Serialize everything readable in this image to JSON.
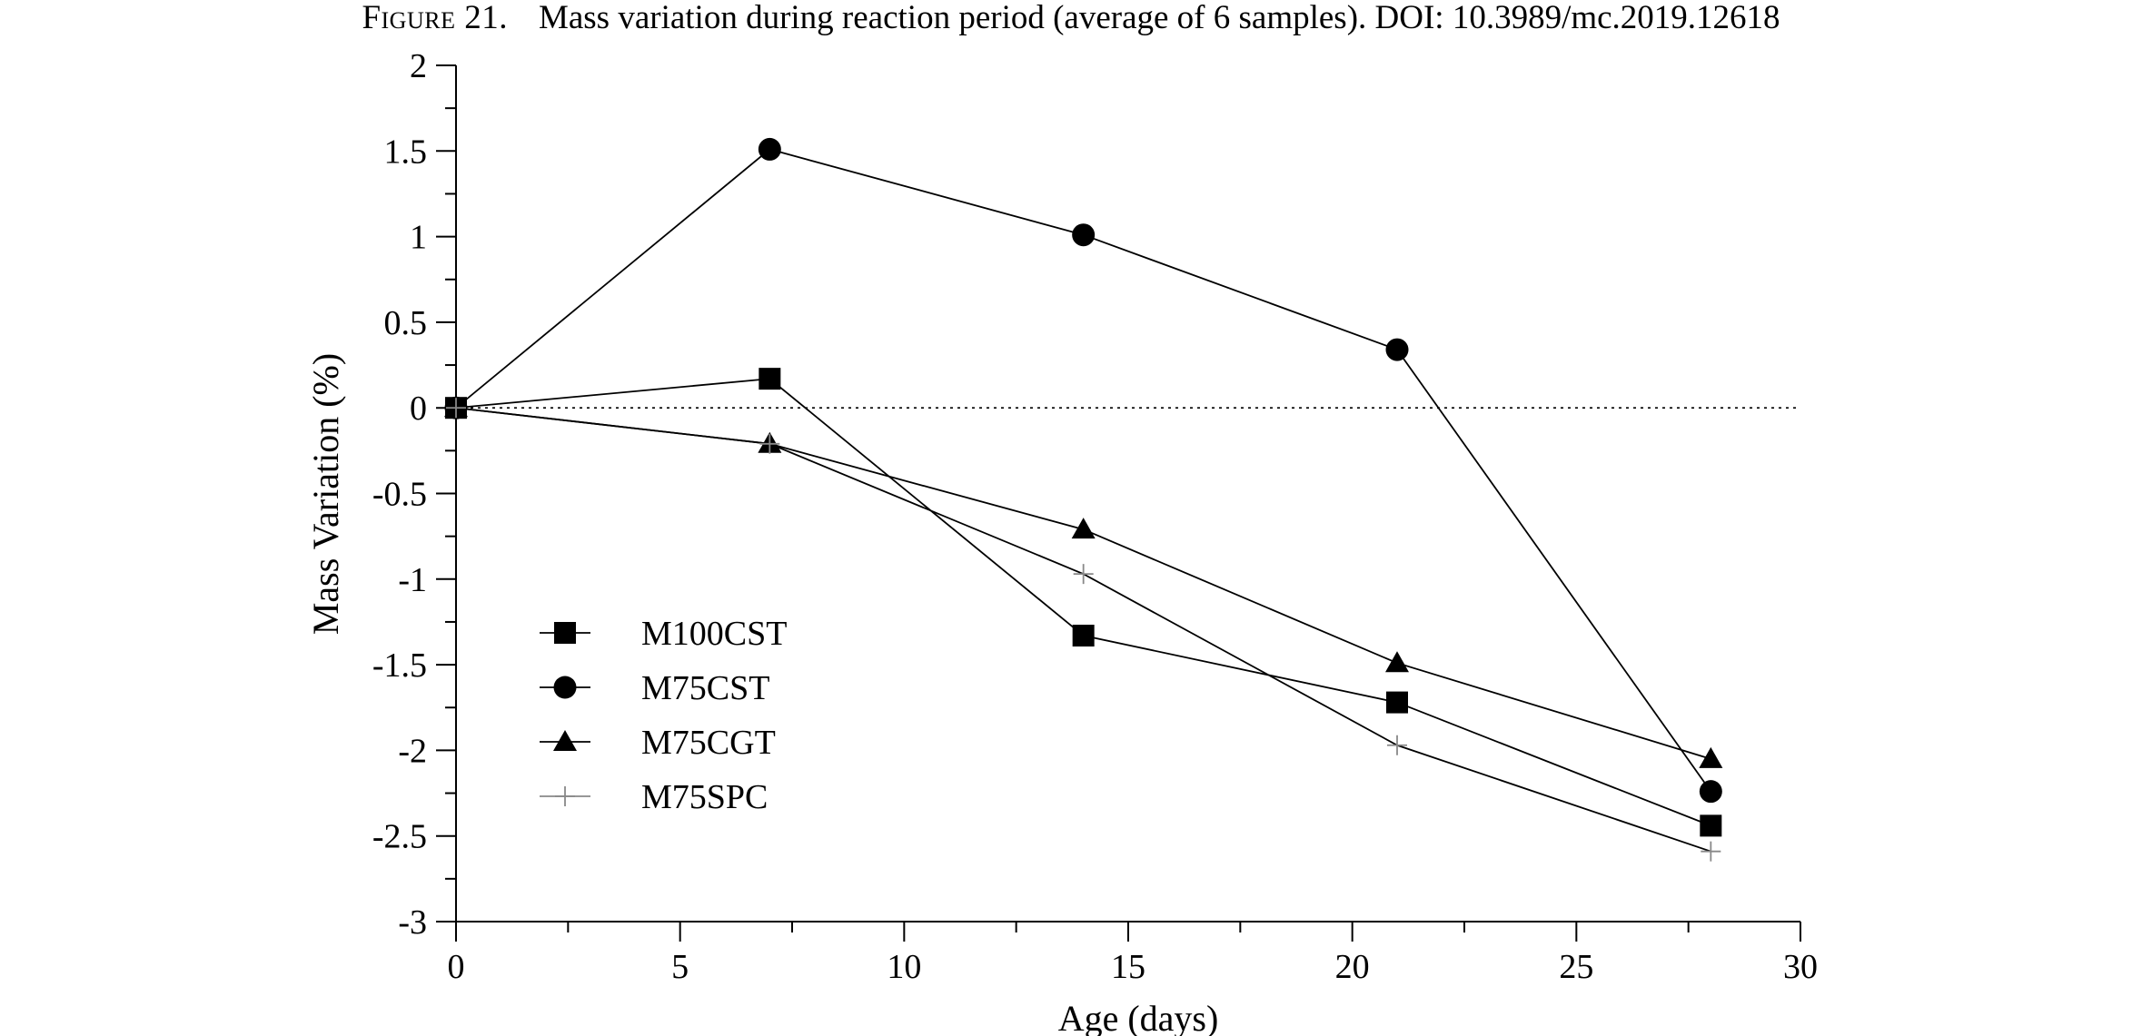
{
  "caption": {
    "figure_label": "Figure 21.",
    "text": "Mass variation during reaction period (average of 6 samples). DOI: 10.3989/mc.2019.12618"
  },
  "chart_data": {
    "type": "line",
    "title": "",
    "xlabel": "Age (days)",
    "ylabel": "Mass Variation (%)",
    "xlim": [
      0,
      30
    ],
    "ylim": [
      -3,
      2
    ],
    "x_ticks": [
      0,
      5,
      10,
      15,
      20,
      25,
      30
    ],
    "x_tick_labels": [
      "0",
      "5",
      "10",
      "15",
      "20",
      "25",
      "30"
    ],
    "y_ticks": [
      2,
      1.5,
      1,
      0.5,
      0,
      -0.5,
      -1,
      -1.5,
      -2,
      -2.5,
      -3
    ],
    "y_tick_labels": [
      "2",
      "1.5",
      "1",
      "0.5",
      "0",
      "-0.5",
      "-1",
      "-1.5",
      "-2",
      "-2.5",
      "-3"
    ],
    "grid": false,
    "reference_line": {
      "y": 0,
      "style": "dotted"
    },
    "legend_position": "lower-left",
    "x": [
      0,
      7,
      14,
      21,
      28
    ],
    "series": [
      {
        "name": "M100CST",
        "marker": "square",
        "color": "#000000",
        "values": [
          0,
          0.17,
          -1.33,
          -1.72,
          -2.44
        ]
      },
      {
        "name": "M75CST",
        "marker": "circle",
        "color": "#000000",
        "values": [
          0,
          1.51,
          1.01,
          0.34,
          -2.24
        ]
      },
      {
        "name": "M75CGT",
        "marker": "triangle",
        "color": "#000000",
        "values": [
          0,
          -0.21,
          -0.71,
          -1.49,
          -2.05
        ]
      },
      {
        "name": "M75SPC",
        "marker": "plus",
        "color": "#888888",
        "values": [
          0,
          -0.21,
          -0.97,
          -1.97,
          -2.59
        ]
      }
    ]
  }
}
